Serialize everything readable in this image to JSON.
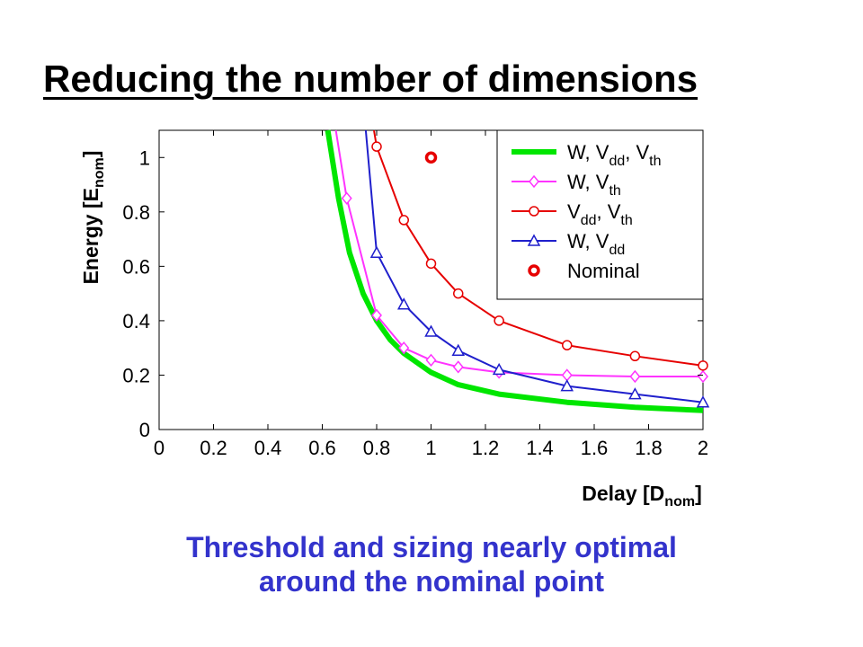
{
  "slide": {
    "title": "Reducing the number of dimensions",
    "caption_line1": "Threshold and sizing nearly optimal",
    "caption_line2": "around the nominal point"
  },
  "colors": {
    "title": "#000000",
    "caption": "#3333cc",
    "w_vdd_vth": "#00e600",
    "w_vth": "#ff33ff",
    "vdd_vth": "#e60000",
    "w_vdd": "#1f1fcc",
    "nominal": "#e60000"
  },
  "chart_data": {
    "type": "line",
    "xlabel_main": "Delay [D",
    "xlabel_sub": "nom",
    "xlabel_end": "]",
    "ylabel_main": "Energy [E",
    "ylabel_sub": "nom",
    "ylabel_end": "]",
    "xlim": [
      0,
      2
    ],
    "ylim": [
      0,
      1.1
    ],
    "x_ticks": [
      "0",
      "0.2",
      "0.4",
      "0.6",
      "0.8",
      "1",
      "1.2",
      "1.4",
      "1.6",
      "1.8",
      "2"
    ],
    "y_ticks": [
      "0",
      "0.2",
      "0.4",
      "0.6",
      "0.8",
      "1"
    ],
    "grid": false,
    "legend_position": "top-right",
    "series": [
      {
        "key": "w_vdd_vth",
        "legend": [
          {
            "t": "W, V"
          },
          {
            "t": "dd",
            "sub": true
          },
          {
            "t": ", V"
          },
          {
            "t": "th",
            "sub": true
          }
        ],
        "marker": "none",
        "x": [
          0.62,
          0.66,
          0.7,
          0.75,
          0.8,
          0.85,
          0.9,
          1.0,
          1.1,
          1.25,
          1.5,
          1.75,
          2.0
        ],
        "y": [
          1.1,
          0.85,
          0.65,
          0.5,
          0.4,
          0.33,
          0.28,
          0.21,
          0.165,
          0.13,
          0.1,
          0.082,
          0.07
        ]
      },
      {
        "key": "w_vth",
        "legend": [
          {
            "t": "W, V"
          },
          {
            "t": "th",
            "sub": true
          }
        ],
        "marker": "diamond",
        "x": [
          0.69,
          0.8,
          0.9,
          1.0,
          1.1,
          1.25,
          1.5,
          1.75,
          2.0
        ],
        "y": [
          0.85,
          0.42,
          0.3,
          0.255,
          0.23,
          0.21,
          0.2,
          0.195,
          0.195
        ],
        "pre": [
          [
            0.65,
            1.1
          ]
        ]
      },
      {
        "key": "vdd_vth",
        "legend": [
          {
            "t": "V"
          },
          {
            "t": "dd",
            "sub": true
          },
          {
            "t": ", V"
          },
          {
            "t": "th",
            "sub": true
          }
        ],
        "marker": "circle",
        "x": [
          0.8,
          0.9,
          1.0,
          1.1,
          1.25,
          1.5,
          1.75,
          2.0
        ],
        "y": [
          1.04,
          0.77,
          0.61,
          0.5,
          0.4,
          0.31,
          0.27,
          0.235
        ],
        "pre": [
          [
            0.79,
            1.1
          ]
        ]
      },
      {
        "key": "w_vdd",
        "legend": [
          {
            "t": "W, V"
          },
          {
            "t": "dd",
            "sub": true
          }
        ],
        "marker": "triangle",
        "x": [
          0.8,
          0.9,
          1.0,
          1.1,
          1.25,
          1.5,
          1.75,
          2.0
        ],
        "y": [
          0.65,
          0.46,
          0.36,
          0.29,
          0.22,
          0.16,
          0.13,
          0.1
        ],
        "pre": [
          [
            0.76,
            1.1
          ]
        ]
      }
    ],
    "nominal": {
      "key": "nominal",
      "legend": [
        {
          "t": "Nominal"
        }
      ],
      "x": 1.0,
      "y": 1.0
    }
  }
}
